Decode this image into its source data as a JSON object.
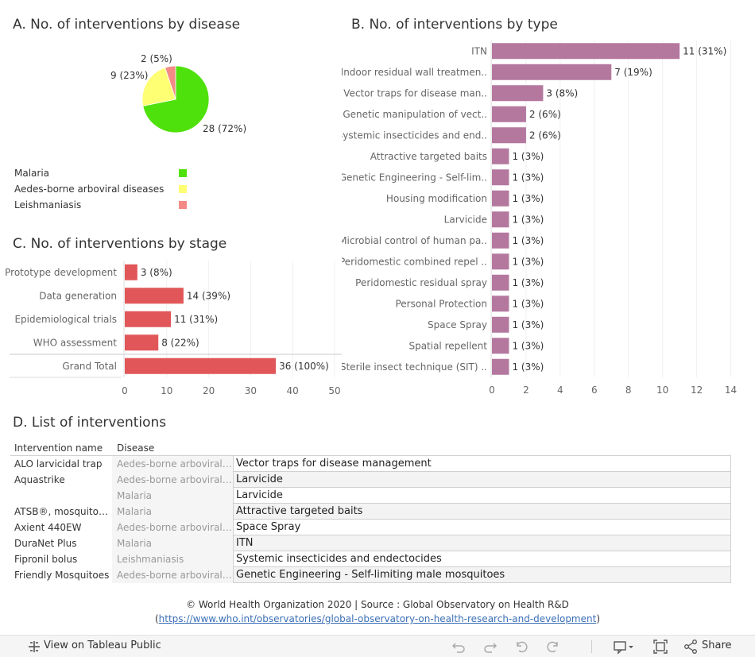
{
  "sections": {
    "a_title": "A. No. of interventions by disease",
    "b_title": "B. No. of interventions by type",
    "c_title": "C. No. of interventions by stage",
    "d_title": "D. List of interventions"
  },
  "chart_data": [
    {
      "id": "disease",
      "type": "pie",
      "title": "A. No. of interventions by disease",
      "slices": [
        {
          "name": "Malaria",
          "value": 28,
          "label": "28 (72%)",
          "color": "#4fe10b"
        },
        {
          "name": "Aedes-borne arboviral diseases",
          "value": 9,
          "label": "9 (23%)",
          "color": "#ffff73"
        },
        {
          "name": "Leishmaniasis",
          "value": 2,
          "label": "2 (5%)",
          "color": "#f48a85"
        }
      ]
    },
    {
      "id": "type",
      "type": "bar",
      "orientation": "horizontal",
      "title": "B. No. of interventions by type",
      "color": "#b4789f",
      "categories": [
        "ITN",
        "Indoor residual wall treatmen..",
        "Vector traps for disease man..",
        "Genetic manipulation of vect..",
        "Systemic insecticides and end..",
        "Attractive targeted baits",
        "Genetic Engineering - Self-lim..",
        "Housing modification",
        "Larvicide",
        "Microbial control of human pa..",
        "Peridomestic combined repel ..",
        "Peridomestic residual spray",
        "Personal Protection",
        "Space Spray",
        "Spatial repellent",
        "Sterile insect technique (SIT) .."
      ],
      "values": [
        11,
        7,
        3,
        2,
        2,
        1,
        1,
        1,
        1,
        1,
        1,
        1,
        1,
        1,
        1,
        1
      ],
      "labels": [
        "11 (31%)",
        "7 (19%)",
        "3 (8%)",
        "2 (6%)",
        "2 (6%)",
        "1 (3%)",
        "1 (3%)",
        "1 (3%)",
        "1 (3%)",
        "1 (3%)",
        "1 (3%)",
        "1 (3%)",
        "1 (3%)",
        "1 (3%)",
        "1 (3%)",
        "1 (3%)"
      ],
      "xlim": [
        0,
        15
      ],
      "ticks": [
        0,
        2,
        4,
        6,
        8,
        10,
        12,
        14
      ]
    },
    {
      "id": "stage",
      "type": "bar",
      "orientation": "horizontal",
      "title": "C. No. of interventions by stage",
      "color": "#e15759",
      "categories": [
        "Prototype development",
        "Data generation",
        "Epidemiological trials",
        "WHO assessment",
        "Grand Total"
      ],
      "values": [
        3,
        14,
        11,
        8,
        36
      ],
      "labels": [
        "3 (8%)",
        "14 (39%)",
        "11 (31%)",
        "8 (22%)",
        "36 (100%)"
      ],
      "xlim": [
        0,
        50
      ],
      "ticks": [
        0,
        10,
        20,
        30,
        40,
        50
      ]
    }
  ],
  "table": {
    "headers": [
      "Intervention name",
      "Disease"
    ],
    "rows": [
      {
        "name": "ALO larvicidal trap",
        "disease": "Aedes-borne arboviral di..",
        "type": "Vector traps for disease management"
      },
      {
        "name": "Aquastrike",
        "disease": "Aedes-borne arboviral di..",
        "type": "Larvicide"
      },
      {
        "name": "",
        "disease": "Malaria",
        "type": "Larvicide"
      },
      {
        "name": "ATSB®, mosquitoes' ..",
        "disease": "Malaria",
        "type": "Attractive targeted baits"
      },
      {
        "name": "Axient 440EW",
        "disease": "Aedes-borne arboviral di..",
        "type": "Space Spray"
      },
      {
        "name": "DuraNet Plus",
        "disease": "Malaria",
        "type": "ITN"
      },
      {
        "name": "Fipronil bolus",
        "disease": "Leishmaniasis",
        "type": "Systemic insecticides and endectocides"
      },
      {
        "name": "Friendly Mosquitoes",
        "disease": "Aedes-borne arboviral di..",
        "type": "Genetic Engineering - Self-limiting male mosquitoes"
      }
    ]
  },
  "footer": {
    "line1": "© World Health Organization 2020 | Source : Global Observatory on Health R&D",
    "paren_open": "(",
    "link": "https://www.who.int/observatories/global-observatory-on-health-research-and-development",
    "paren_close": ")"
  },
  "toolbar": {
    "view_label": "View on Tableau Public",
    "share_label": "Share",
    "icons": [
      "tableau-icon",
      "undo-icon",
      "redo-icon",
      "revert-icon",
      "refresh-icon",
      "comment-icon",
      "fullscreen-icon",
      "share-icon"
    ]
  }
}
